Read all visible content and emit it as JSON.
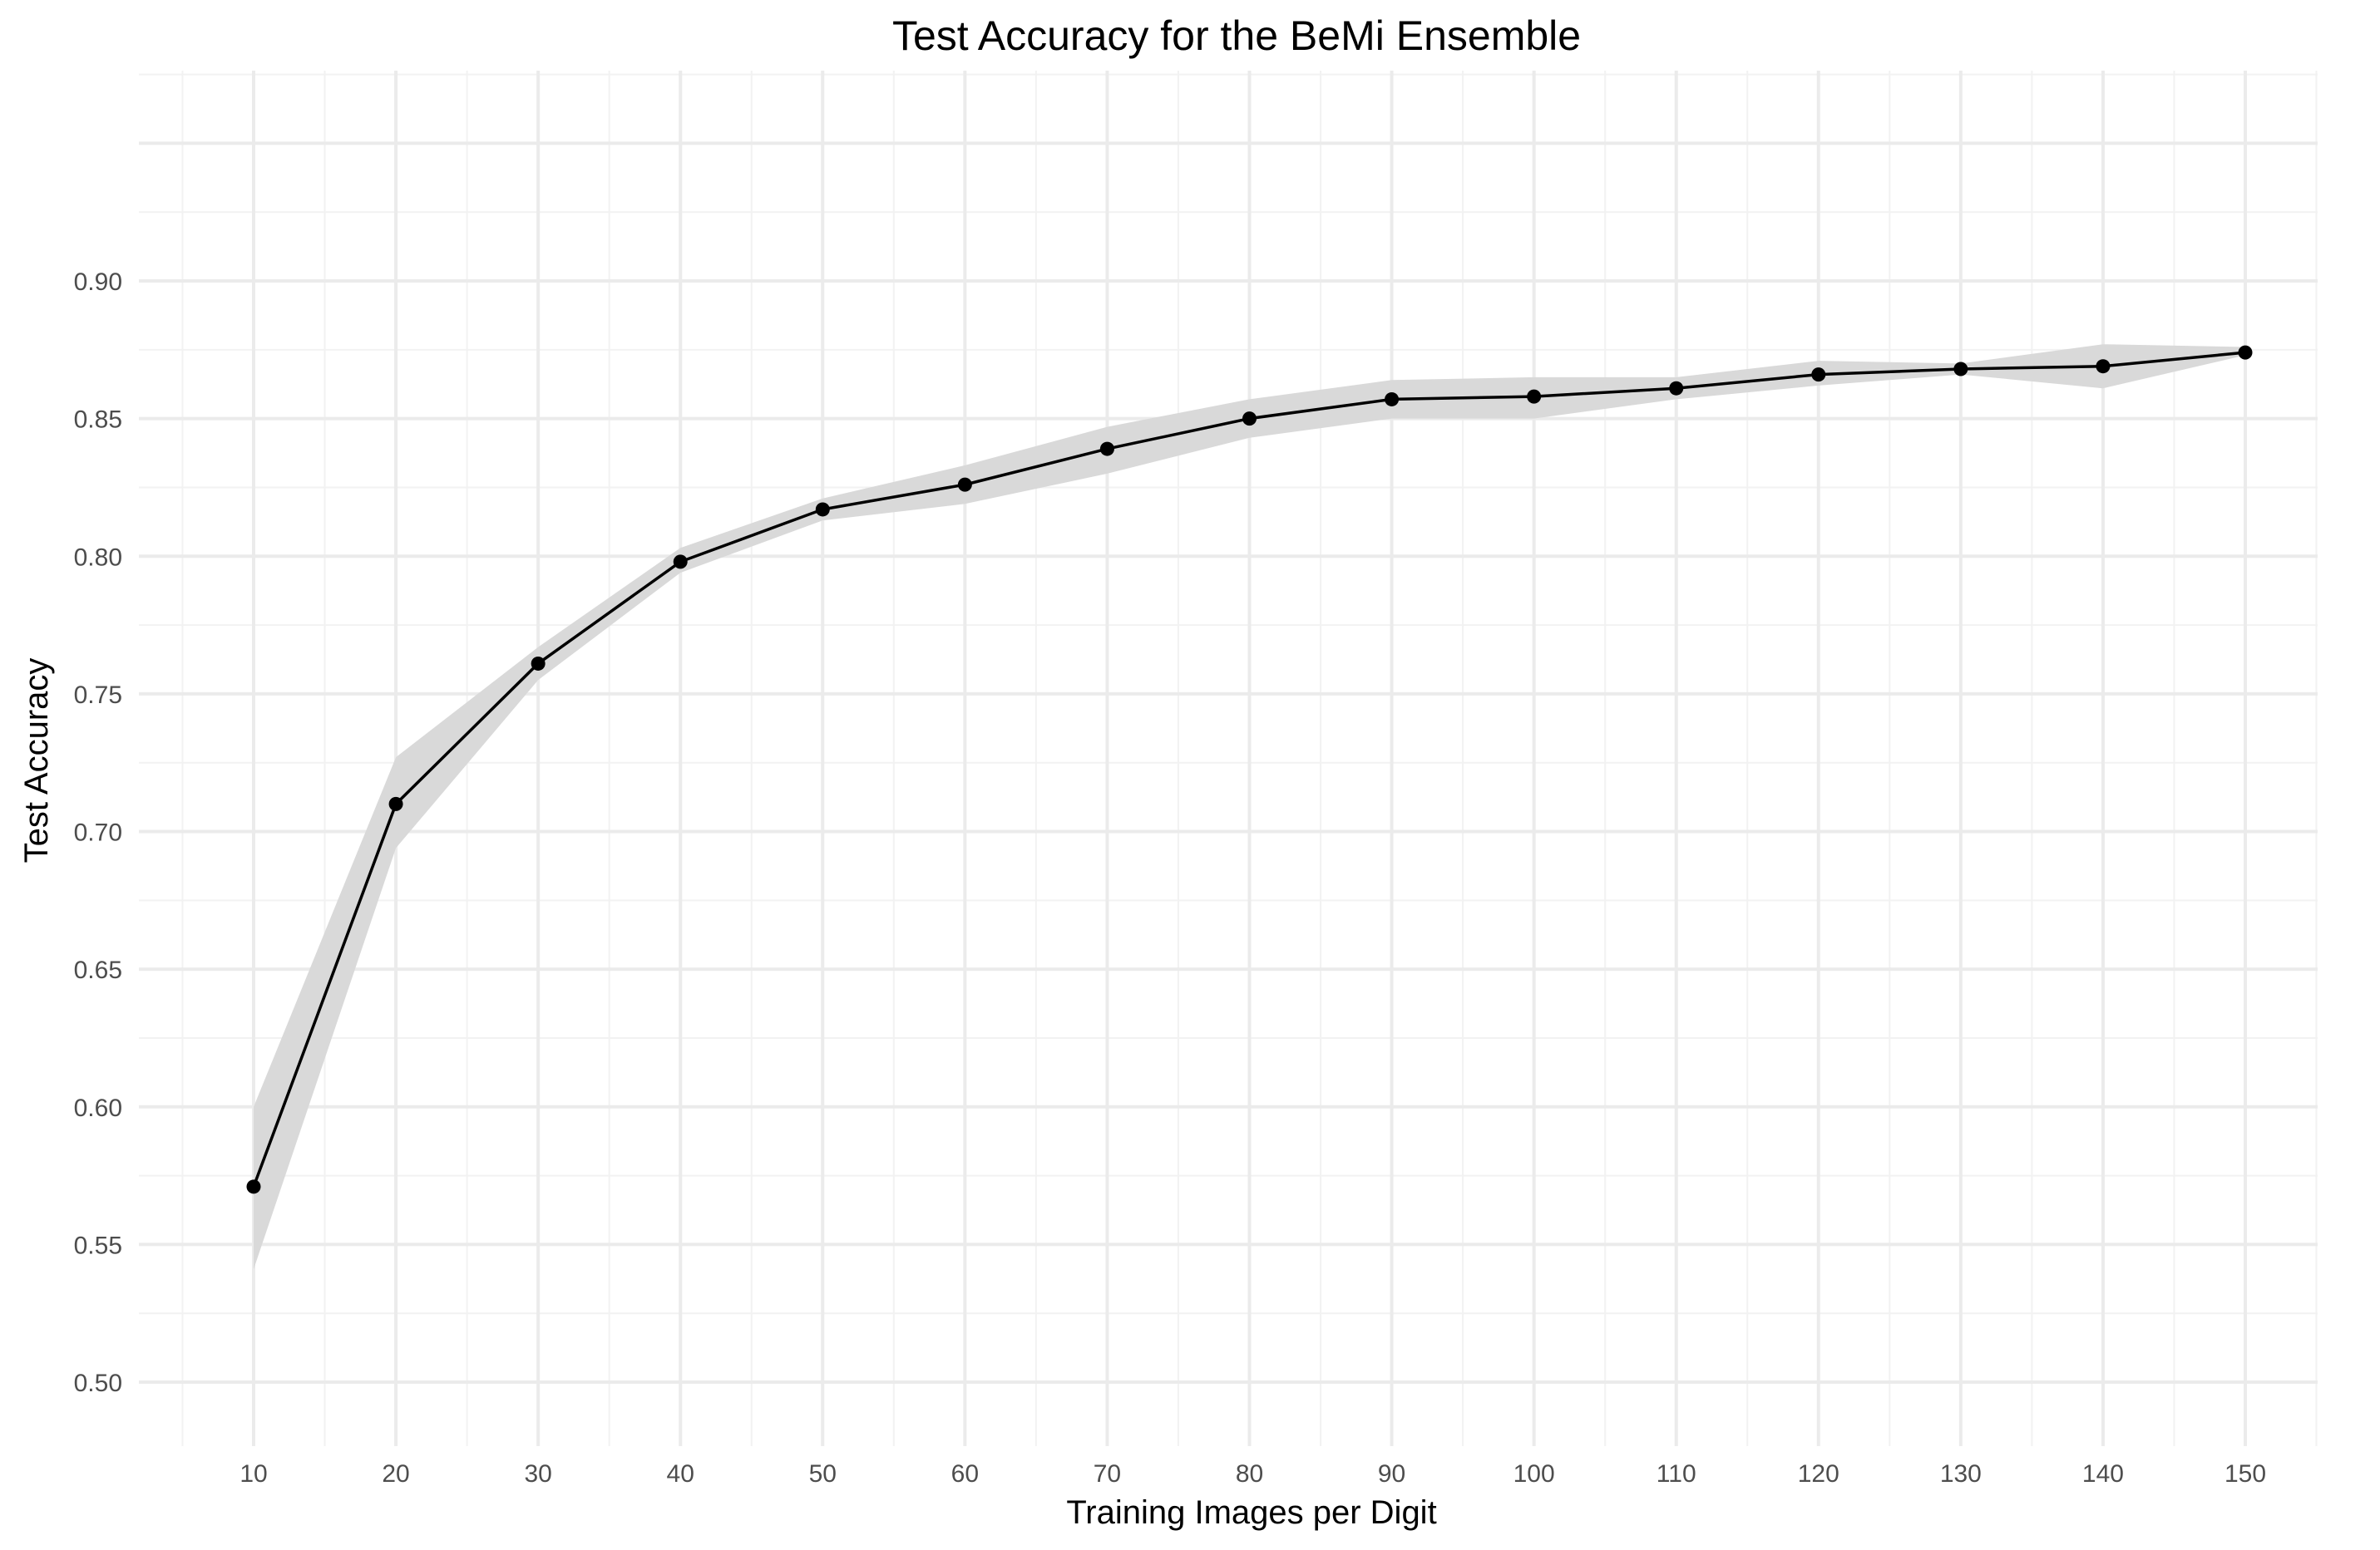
{
  "chart_data": {
    "type": "line",
    "title": "Test Accuracy for the BeMi Ensemble",
    "xlabel": "Training Images per Digit",
    "ylabel": "Test Accuracy",
    "x": [
      10,
      20,
      30,
      40,
      50,
      60,
      70,
      80,
      90,
      100,
      110,
      120,
      130,
      140,
      150
    ],
    "series": [
      {
        "values": [
          0.571,
          0.71,
          0.761,
          0.798,
          0.817,
          0.826,
          0.839,
          0.85,
          0.857,
          0.858,
          0.861,
          0.866,
          0.868,
          0.869,
          0.874
        ],
        "lower": [
          0.541,
          0.694,
          0.755,
          0.794,
          0.813,
          0.819,
          0.83,
          0.843,
          0.85,
          0.85,
          0.857,
          0.862,
          0.866,
          0.861,
          0.873
        ],
        "upper": [
          0.6,
          0.727,
          0.767,
          0.803,
          0.821,
          0.833,
          0.847,
          0.857,
          0.864,
          0.865,
          0.865,
          0.871,
          0.87,
          0.877,
          0.876
        ]
      }
    ],
    "xlim": [
      0,
      155
    ],
    "ylim": [
      0.477,
      0.985
    ],
    "x_ticks": [
      "10",
      "20",
      "30",
      "40",
      "50",
      "60",
      "70",
      "80",
      "90",
      "100",
      "110",
      "120",
      "130",
      "140",
      "150"
    ],
    "y_ticks": [
      "0.50",
      "0.55",
      "0.60",
      "0.65",
      "0.70",
      "0.75",
      "0.80",
      "0.85",
      "0.90"
    ],
    "grid": true,
    "legend": "none",
    "colors": {
      "line": "#000000",
      "band": "#d9d9d9",
      "grid": "#ebebeb"
    }
  }
}
